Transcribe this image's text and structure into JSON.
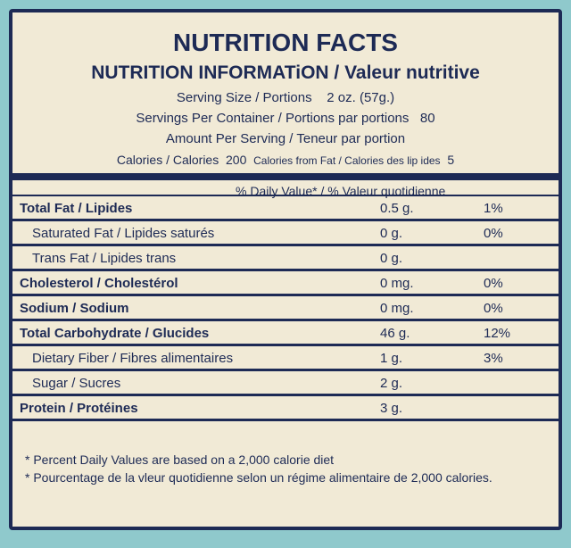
{
  "label": {
    "title": "NUTRITION FACTS",
    "subtitle": "NUTRITION INFORMATiON / Valeur nutritive",
    "serving_size": {
      "label": "Serving Size / Portions",
      "value": "2 oz. (57g.)"
    },
    "servings_per_container": {
      "label": "Servings Per Container / Portions par portions",
      "value": 80
    },
    "amount_per_serving": "Amount Per Serving / Teneur par portion",
    "calories": {
      "label": "Calories / Calories",
      "value": 200,
      "fat_label": "Calories from Fat / Calories des lip ides",
      "fat_value": 5
    },
    "dv_header": "% Daily Value* / % Valeur quotidienne",
    "rows": [
      {
        "name": "Total Fat / Lipides",
        "amount": "0.5 g.",
        "dv": "1%"
      },
      {
        "name": "Saturated Fat  / Lipides saturés",
        "amount": "0 g.",
        "dv": "0%",
        "indent": true
      },
      {
        "name": "Trans Fat / Lipides trans",
        "amount": "0 g.",
        "indent": true
      },
      {
        "name": "Cholesterol / Cholestérol",
        "amount": "0 mg.",
        "dv": "0%"
      },
      {
        "name": "Sodium / Sodium",
        "amount": "0 mg.",
        "dv": "0%"
      },
      {
        "name": "Total Carbohydrate / Glucides",
        "amount": "46 g.",
        "dv": "12%"
      },
      {
        "name": "Dietary Fiber / Fibres alimentaires",
        "amount": "1 g.",
        "dv": "3%",
        "indent": true
      },
      {
        "name": "Sugar / Sucres",
        "amount": "2 g.",
        "indent": true
      },
      {
        "name": "Protein / Protéines",
        "amount": "3 g."
      }
    ],
    "footnotes": [
      "* Percent Daily Values are based on a 2,000 calorie diet",
      "* Pourcentage de la vleur quotidienne selon un régime alimentaire de 2,000 calories."
    ]
  }
}
